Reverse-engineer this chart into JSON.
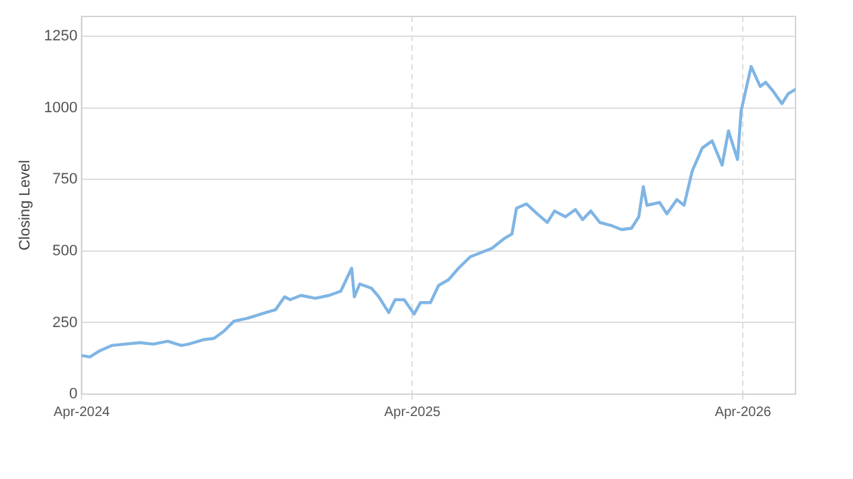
{
  "chart_data": {
    "type": "line",
    "ylabel": "Closing Level",
    "x": [
      "2024-04-01",
      "2024-04-10",
      "2024-04-20",
      "2024-05-04",
      "2024-05-19",
      "2024-06-04",
      "2024-06-19",
      "2024-07-05",
      "2024-07-20",
      "2024-07-28",
      "2024-08-13",
      "2024-08-25",
      "2024-09-05",
      "2024-09-16",
      "2024-10-01",
      "2024-10-21",
      "2024-11-01",
      "2024-11-11",
      "2024-11-17",
      "2024-11-29",
      "2024-12-15",
      "2024-12-30",
      "2025-01-12",
      "2025-01-18",
      "2025-01-24",
      "2025-01-27",
      "2025-02-02",
      "2025-02-15",
      "2025-02-23",
      "2025-03-06",
      "2025-03-13",
      "2025-03-23",
      "2025-04-03",
      "2025-04-10",
      "2025-04-21",
      "2025-04-30",
      "2025-05-11",
      "2025-05-22",
      "2025-06-04",
      "2025-06-16",
      "2025-06-28",
      "2025-07-12",
      "2025-07-20",
      "2025-07-25",
      "2025-08-05",
      "2025-08-17",
      "2025-08-28",
      "2025-09-05",
      "2025-09-17",
      "2025-09-28",
      "2025-10-06",
      "2025-10-15",
      "2025-10-25",
      "2025-11-06",
      "2025-11-18",
      "2025-11-29",
      "2025-12-07",
      "2025-12-12",
      "2025-12-16",
      "2025-12-30",
      "2026-01-07",
      "2026-01-18",
      "2026-01-26",
      "2026-02-04",
      "2026-02-15",
      "2026-02-26",
      "2026-03-09",
      "2026-03-16",
      "2026-03-26",
      "2026-03-30",
      "2026-04-10",
      "2026-04-20",
      "2026-04-26",
      "2026-05-04",
      "2026-05-14",
      "2026-05-21",
      "2026-05-29"
    ],
    "series": [
      {
        "color": "#7fb5e4",
        "values": [
          135,
          130,
          150,
          170,
          175,
          180,
          175,
          185,
          170,
          175,
          190,
          195,
          220,
          255,
          265,
          285,
          295,
          340,
          330,
          345,
          335,
          345,
          360,
          400,
          440,
          340,
          385,
          370,
          340,
          285,
          330,
          330,
          280,
          320,
          320,
          380,
          400,
          440,
          480,
          495,
          510,
          545,
          560,
          650,
          665,
          630,
          600,
          640,
          620,
          645,
          610,
          640,
          600,
          590,
          575,
          580,
          620,
          725,
          660,
          670,
          630,
          680,
          660,
          780,
          860,
          885,
          800,
          920,
          820,
          990,
          1145,
          1075,
          1090,
          1060,
          1015,
          1050,
          1065
        ]
      }
    ],
    "xlim": [
      "2024-04-01",
      "2026-05-29"
    ],
    "xticks": [
      {
        "value": "2024-04",
        "label": "Apr-2024"
      },
      {
        "value": "2025-04",
        "label": "Apr-2025"
      },
      {
        "value": "2026-04",
        "label": "Apr-2026"
      }
    ],
    "ylim": [
      0,
      1320
    ],
    "yticks": [
      0,
      250,
      500,
      750,
      1000,
      1250
    ],
    "grid": true,
    "legend": false,
    "marker": "none",
    "line_style": "solid"
  }
}
